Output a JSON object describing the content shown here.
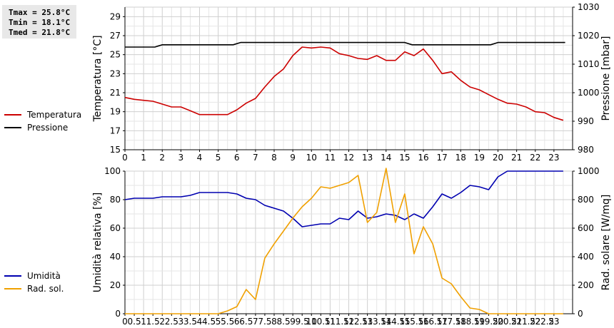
{
  "stats": {
    "tmax": "Tmax = 25.8°C",
    "tmin": "Tmin = 18.1°C",
    "tmed": "Tmed = 21.8°C"
  },
  "chart_data": [
    {
      "type": "line",
      "ylabel": "Temperatura [°C]",
      "y2label": "Pressione [mbar]",
      "ylim": [
        15,
        30
      ],
      "yticks": [
        "15",
        "17",
        "19",
        "21",
        "23",
        "25",
        "27",
        "29"
      ],
      "y2lim": [
        980,
        1030
      ],
      "y2ticks": [
        "980",
        "990",
        "1000",
        "1010",
        "1020",
        "1030"
      ],
      "xlim": [
        0,
        24
      ],
      "xticks": [
        "0",
        "1",
        "2",
        "3",
        "4",
        "5",
        "6",
        "7",
        "8",
        "9",
        "10",
        "11",
        "12",
        "13",
        "14",
        "15",
        "16",
        "17",
        "18",
        "19",
        "20",
        "21",
        "22",
        "23"
      ],
      "grid": true,
      "legend": "left",
      "series": [
        {
          "name": "Temperatura",
          "axis": "left",
          "color": "#cc0000",
          "x": [
            0,
            0.5,
            1,
            1.5,
            2,
            2.5,
            3,
            3.5,
            4,
            4.5,
            5,
            5.5,
            6,
            6.5,
            7,
            7.5,
            8,
            8.5,
            9,
            9.5,
            10,
            10.5,
            11,
            11.5,
            12,
            12.5,
            13,
            13.5,
            14,
            14.5,
            15,
            15.5,
            16,
            16.5,
            17,
            17.5,
            18,
            18.5,
            19,
            19.5,
            20,
            20.5,
            21,
            21.5,
            22,
            22.5,
            23,
            23.5
          ],
          "values": [
            20.5,
            20.3,
            20.2,
            20.1,
            19.8,
            19.5,
            19.5,
            19.1,
            18.7,
            18.7,
            18.7,
            18.7,
            19.2,
            19.9,
            20.4,
            21.6,
            22.7,
            23.5,
            24.9,
            25.8,
            25.7,
            25.8,
            25.7,
            25.1,
            24.9,
            24.6,
            24.5,
            24.9,
            24.4,
            24.4,
            25.3,
            24.9,
            25.6,
            24.4,
            23.0,
            23.2,
            22.3,
            21.6,
            21.3,
            20.8,
            20.3,
            19.9,
            19.8,
            19.5,
            19.0,
            18.9,
            18.4,
            18.1
          ]
        },
        {
          "name": "Pressione",
          "axis": "right",
          "color": "#000000",
          "x": [
            0,
            1.6,
            2,
            5.8,
            6.2,
            15,
            15.4,
            19.6,
            20,
            23.6
          ],
          "values": [
            1016,
            1016,
            1016.8,
            1016.8,
            1017.6,
            1017.6,
            1016.8,
            1016.8,
            1017.6,
            1017.6
          ]
        }
      ]
    },
    {
      "type": "line",
      "ylabel": "Umidità relativa [%]",
      "y2label": "Rad. solare [W/mq]",
      "ylim": [
        0,
        100
      ],
      "yticks": [
        "0",
        "20",
        "40",
        "60",
        "80",
        "100"
      ],
      "y2lim": [
        0,
        1000
      ],
      "y2ticks": [
        "0",
        "200",
        "400",
        "600",
        "800",
        "1000"
      ],
      "xlim": [
        0,
        24
      ],
      "xticks": [
        "0",
        "0.5",
        "1",
        "1.5",
        "2",
        "2.5",
        "3",
        "3.5",
        "4",
        "4.5",
        "5",
        "5.5",
        "6",
        "6.5",
        "7",
        "7.5",
        "8",
        "8.5",
        "9",
        "9.5",
        "10",
        "10.5",
        "11",
        "11.5",
        "12",
        "12.5",
        "13",
        "13.5",
        "14",
        "14.5",
        "15",
        "15.5",
        "16",
        "16.5",
        "17",
        "17.5",
        "18",
        "18.5",
        "19",
        "19.5",
        "20",
        "20.5",
        "21",
        "21.5",
        "22",
        "22.5",
        "23"
      ],
      "grid": true,
      "legend": "left",
      "series": [
        {
          "name": "Umidità",
          "axis": "left",
          "color": "#0000b0",
          "x": [
            0,
            0.5,
            1,
            1.5,
            2,
            2.5,
            3,
            3.5,
            4,
            4.5,
            5,
            5.5,
            6,
            6.5,
            7,
            7.5,
            8,
            8.5,
            9,
            9.5,
            10,
            10.5,
            11,
            11.5,
            12,
            12.5,
            13,
            13.5,
            14,
            14.5,
            15,
            15.5,
            16,
            16.5,
            17,
            17.5,
            18,
            18.5,
            19,
            19.5,
            20,
            20.5,
            21,
            21.5,
            22,
            22.5,
            23,
            23.5
          ],
          "values": [
            80,
            81,
            81,
            81,
            82,
            82,
            82,
            83,
            85,
            85,
            85,
            85,
            84,
            81,
            80,
            76,
            74,
            72,
            67,
            61,
            62,
            63,
            63,
            67,
            66,
            72,
            67,
            68,
            70,
            69,
            66,
            70,
            67,
            75,
            84,
            81,
            85,
            90,
            89,
            87,
            96,
            100,
            100,
            100,
            100,
            100,
            100,
            100
          ]
        },
        {
          "name": "Rad. sol.",
          "axis": "right",
          "color": "#f0a000",
          "x": [
            0,
            0.5,
            1,
            1.5,
            2,
            2.5,
            3,
            3.5,
            4,
            4.5,
            5,
            5.5,
            6,
            6.5,
            7,
            7.5,
            8,
            8.5,
            9,
            9.5,
            10,
            10.5,
            11,
            11.5,
            12,
            12.5,
            13,
            13.5,
            14,
            14.5,
            15,
            15.5,
            16,
            16.5,
            17,
            17.5,
            18,
            18.5,
            19,
            19.5,
            20,
            20.5,
            21,
            21.5,
            22,
            22.5,
            23,
            23.5
          ],
          "values": [
            0,
            0,
            0,
            0,
            0,
            0,
            0,
            0,
            0,
            0,
            0,
            20,
            50,
            170,
            100,
            390,
            490,
            580,
            670,
            750,
            810,
            890,
            880,
            900,
            920,
            970,
            640,
            710,
            1020,
            640,
            840,
            420,
            610,
            490,
            250,
            210,
            120,
            40,
            30,
            0,
            0,
            0,
            0,
            0,
            0,
            0,
            0,
            0
          ]
        }
      ]
    }
  ]
}
